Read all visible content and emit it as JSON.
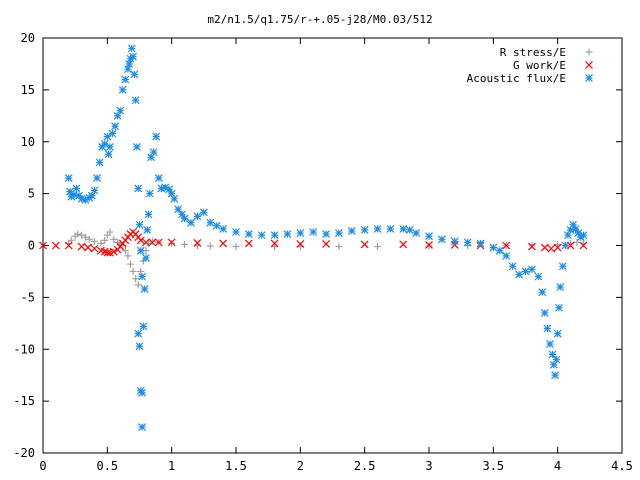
{
  "chart_data": {
    "type": "scatter",
    "title": "m2/n1.5/q1.75/r-+.05-j28/M0.03/512",
    "xlabel": "",
    "ylabel": "",
    "xlim": [
      0,
      4.5
    ],
    "ylim": [
      -20,
      20
    ],
    "x_ticks": [
      "0",
      "0.5",
      "1",
      "1.5",
      "2",
      "2.5",
      "3",
      "3.5",
      "4",
      "4.5"
    ],
    "y_ticks": [
      "20",
      "15",
      "10",
      "5",
      "0",
      "-5",
      "-10",
      "-15",
      "-20"
    ],
    "grid": false,
    "legend_position": "top-right",
    "series": [
      {
        "name": "R stress/E",
        "marker": "plus",
        "color": "#a0a0a0",
        "points": [
          [
            0.2,
            0.2
          ],
          [
            0.22,
            0.5
          ],
          [
            0.25,
            0.9
          ],
          [
            0.27,
            1.1
          ],
          [
            0.3,
            1.0
          ],
          [
            0.33,
            0.8
          ],
          [
            0.36,
            0.6
          ],
          [
            0.4,
            0.4
          ],
          [
            0.45,
            0.2
          ],
          [
            0.48,
            0.5
          ],
          [
            0.5,
            1.0
          ],
          [
            0.52,
            1.3
          ],
          [
            0.55,
            0.6
          ],
          [
            0.58,
            0.3
          ],
          [
            0.6,
            0.2
          ],
          [
            0.62,
            0.0
          ],
          [
            0.64,
            -0.5
          ],
          [
            0.66,
            -1.0
          ],
          [
            0.68,
            -1.8
          ],
          [
            0.7,
            -2.5
          ],
          [
            0.72,
            -3.2
          ],
          [
            0.74,
            -3.8
          ],
          [
            0.76,
            -2.5
          ],
          [
            0.78,
            -1.5
          ],
          [
            0.8,
            -0.5
          ],
          [
            0.82,
            0.2
          ],
          [
            0.85,
            0.4
          ],
          [
            0.9,
            0.3
          ],
          [
            1.0,
            0.2
          ],
          [
            1.1,
            0.1
          ],
          [
            1.2,
            0.0
          ],
          [
            1.3,
            -0.05
          ],
          [
            1.5,
            -0.1
          ],
          [
            1.8,
            -0.1
          ],
          [
            2.0,
            -0.1
          ],
          [
            2.3,
            -0.1
          ],
          [
            2.6,
            -0.1
          ],
          [
            3.0,
            -0.05
          ],
          [
            3.3,
            0.0
          ],
          [
            3.6,
            0.0
          ],
          [
            3.8,
            0.05
          ],
          [
            4.0,
            0.1
          ],
          [
            4.1,
            0.2
          ],
          [
            4.15,
            0.3
          ],
          [
            4.2,
            0.2
          ]
        ]
      },
      {
        "name": "G work/E",
        "marker": "cross",
        "color": "#ff0000",
        "points": [
          [
            0.0,
            0.0
          ],
          [
            0.1,
            0.0
          ],
          [
            0.2,
            0.0
          ],
          [
            0.3,
            -0.1
          ],
          [
            0.35,
            -0.2
          ],
          [
            0.4,
            -0.3
          ],
          [
            0.45,
            -0.5
          ],
          [
            0.48,
            -0.6
          ],
          [
            0.5,
            -0.7
          ],
          [
            0.52,
            -0.7
          ],
          [
            0.55,
            -0.6
          ],
          [
            0.58,
            -0.4
          ],
          [
            0.6,
            -0.1
          ],
          [
            0.62,
            0.2
          ],
          [
            0.64,
            0.5
          ],
          [
            0.66,
            0.8
          ],
          [
            0.68,
            1.1
          ],
          [
            0.7,
            1.3
          ],
          [
            0.72,
            1.1
          ],
          [
            0.74,
            0.8
          ],
          [
            0.76,
            0.5
          ],
          [
            0.8,
            0.3
          ],
          [
            0.85,
            0.3
          ],
          [
            0.9,
            0.3
          ],
          [
            1.0,
            0.3
          ],
          [
            1.2,
            0.25
          ],
          [
            1.4,
            0.2
          ],
          [
            1.6,
            0.2
          ],
          [
            1.8,
            0.2
          ],
          [
            2.0,
            0.15
          ],
          [
            2.2,
            0.15
          ],
          [
            2.5,
            0.1
          ],
          [
            2.8,
            0.1
          ],
          [
            3.0,
            0.05
          ],
          [
            3.2,
            0.05
          ],
          [
            3.4,
            0.0
          ],
          [
            3.6,
            0.0
          ],
          [
            3.8,
            -0.1
          ],
          [
            3.9,
            -0.2
          ],
          [
            3.95,
            -0.3
          ],
          [
            4.0,
            -0.2
          ],
          [
            4.1,
            0.0
          ],
          [
            4.2,
            0.0
          ]
        ]
      },
      {
        "name": "Acoustic flux/E",
        "marker": "star",
        "color": "#1e8ce6",
        "points": [
          [
            0.2,
            6.5
          ],
          [
            0.21,
            5.2
          ],
          [
            0.22,
            4.7
          ],
          [
            0.24,
            4.9
          ],
          [
            0.26,
            5.5
          ],
          [
            0.28,
            4.8
          ],
          [
            0.3,
            4.5
          ],
          [
            0.33,
            4.4
          ],
          [
            0.36,
            4.6
          ],
          [
            0.38,
            4.8
          ],
          [
            0.4,
            5.3
          ],
          [
            0.42,
            6.5
          ],
          [
            0.44,
            8.0
          ],
          [
            0.46,
            9.5
          ],
          [
            0.48,
            9.8
          ],
          [
            0.5,
            10.5
          ],
          [
            0.51,
            8.8
          ],
          [
            0.52,
            9.5
          ],
          [
            0.54,
            10.8
          ],
          [
            0.56,
            11.5
          ],
          [
            0.58,
            12.5
          ],
          [
            0.6,
            13.0
          ],
          [
            0.62,
            15.0
          ],
          [
            0.64,
            16.0
          ],
          [
            0.66,
            17.0
          ],
          [
            0.67,
            17.5
          ],
          [
            0.68,
            18.0
          ],
          [
            0.69,
            19.0
          ],
          [
            0.7,
            18.2
          ],
          [
            0.71,
            16.5
          ],
          [
            0.72,
            14.0
          ],
          [
            0.73,
            9.5
          ],
          [
            0.74,
            5.5
          ],
          [
            0.75,
            2.0
          ],
          [
            0.76,
            -0.5
          ],
          [
            0.77,
            -3.0
          ],
          [
            0.74,
            -8.5
          ],
          [
            0.75,
            -9.7
          ],
          [
            0.76,
            -14.0
          ],
          [
            0.77,
            -14.2
          ],
          [
            0.77,
            -17.5
          ],
          [
            0.78,
            -7.8
          ],
          [
            0.79,
            -4.2
          ],
          [
            0.8,
            -1.2
          ],
          [
            0.81,
            1.5
          ],
          [
            0.82,
            3.0
          ],
          [
            0.83,
            5.0
          ],
          [
            0.84,
            8.5
          ],
          [
            0.86,
            9.0
          ],
          [
            0.88,
            10.5
          ],
          [
            0.9,
            6.5
          ],
          [
            0.92,
            5.5
          ],
          [
            0.95,
            5.6
          ],
          [
            0.98,
            5.4
          ],
          [
            1.0,
            5.0
          ],
          [
            1.02,
            4.5
          ],
          [
            1.05,
            3.5
          ],
          [
            1.08,
            3.0
          ],
          [
            1.1,
            2.6
          ],
          [
            1.15,
            2.2
          ],
          [
            1.2,
            2.8
          ],
          [
            1.25,
            3.2
          ],
          [
            1.3,
            2.2
          ],
          [
            1.35,
            1.9
          ],
          [
            1.4,
            1.6
          ],
          [
            1.5,
            1.3
          ],
          [
            1.6,
            1.1
          ],
          [
            1.7,
            1.0
          ],
          [
            1.8,
            1.0
          ],
          [
            1.9,
            1.1
          ],
          [
            2.0,
            1.2
          ],
          [
            2.1,
            1.3
          ],
          [
            2.2,
            1.1
          ],
          [
            2.3,
            1.2
          ],
          [
            2.4,
            1.4
          ],
          [
            2.5,
            1.5
          ],
          [
            2.6,
            1.6
          ],
          [
            2.7,
            1.6
          ],
          [
            2.8,
            1.6
          ],
          [
            2.85,
            1.5
          ],
          [
            2.9,
            1.2
          ],
          [
            3.0,
            0.9
          ],
          [
            3.1,
            0.6
          ],
          [
            3.2,
            0.4
          ],
          [
            3.3,
            0.3
          ],
          [
            3.4,
            0.2
          ],
          [
            3.5,
            -0.2
          ],
          [
            3.55,
            -0.5
          ],
          [
            3.6,
            -1.0
          ],
          [
            3.65,
            -2.0
          ],
          [
            3.7,
            -2.8
          ],
          [
            3.75,
            -2.5
          ],
          [
            3.8,
            -2.3
          ],
          [
            3.85,
            -3.0
          ],
          [
            3.88,
            -4.5
          ],
          [
            3.9,
            -6.5
          ],
          [
            3.92,
            -8.0
          ],
          [
            3.94,
            -9.5
          ],
          [
            3.96,
            -10.5
          ],
          [
            3.97,
            -11.5
          ],
          [
            3.98,
            -12.5
          ],
          [
            3.99,
            -11.0
          ],
          [
            4.0,
            -8.5
          ],
          [
            4.01,
            -6.0
          ],
          [
            4.02,
            -4.0
          ],
          [
            4.04,
            -2.0
          ],
          [
            4.06,
            0.0
          ],
          [
            4.08,
            1.0
          ],
          [
            4.1,
            1.5
          ],
          [
            4.12,
            2.0
          ],
          [
            4.14,
            1.6
          ],
          [
            4.16,
            1.2
          ],
          [
            4.18,
            0.8
          ],
          [
            4.2,
            1.0
          ]
        ]
      }
    ]
  }
}
